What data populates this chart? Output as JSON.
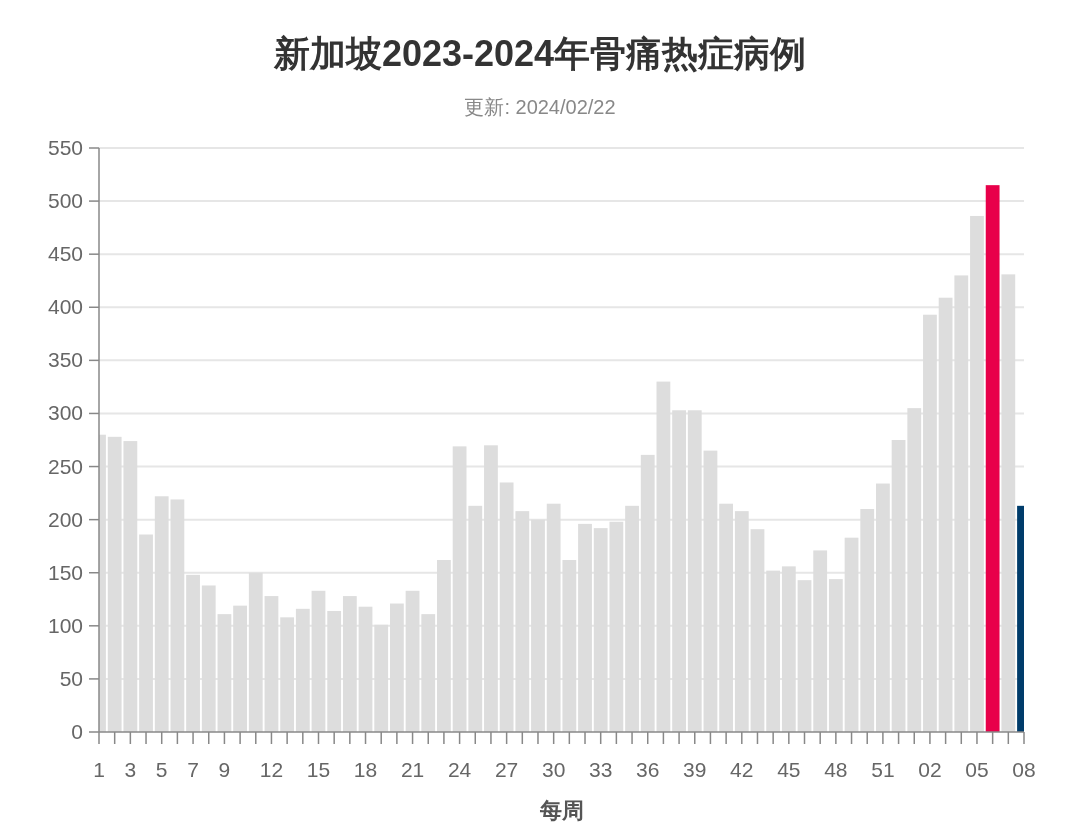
{
  "chart_data": {
    "type": "bar",
    "title": "新加坡2023-2024年骨痛热症病例",
    "subtitle": "更新: 2024/02/22",
    "xlabel": "每周",
    "categories": [
      "1",
      null,
      "3",
      null,
      "5",
      null,
      "7",
      null,
      "9",
      null,
      null,
      "12",
      null,
      null,
      "15",
      null,
      null,
      "18",
      null,
      null,
      "21",
      null,
      null,
      "24",
      null,
      null,
      "27",
      null,
      null,
      "30",
      null,
      null,
      "33",
      null,
      null,
      "36",
      null,
      null,
      "39",
      null,
      null,
      "42",
      null,
      null,
      "45",
      null,
      null,
      "48",
      null,
      null,
      "51",
      null,
      null,
      "02",
      null,
      null,
      "05",
      null,
      null,
      "08"
    ],
    "values": [
      280,
      278,
      274,
      186,
      222,
      219,
      148,
      138,
      111,
      119,
      150,
      128,
      108,
      116,
      133,
      114,
      128,
      118,
      101,
      121,
      133,
      111,
      162,
      269,
      213,
      270,
      235,
      208,
      200,
      215,
      162,
      196,
      192,
      198,
      213,
      261,
      330,
      303,
      303,
      265,
      215,
      208,
      191,
      152,
      156,
      143,
      171,
      144,
      183,
      210,
      234,
      275,
      305,
      393,
      409,
      430,
      486,
      515,
      431,
      213
    ],
    "colors": [
      "#dddddd",
      "#dddddd",
      "#dddddd",
      "#dddddd",
      "#dddddd",
      "#dddddd",
      "#dddddd",
      "#dddddd",
      "#dddddd",
      "#dddddd",
      "#dddddd",
      "#dddddd",
      "#dddddd",
      "#dddddd",
      "#dddddd",
      "#dddddd",
      "#dddddd",
      "#dddddd",
      "#dddddd",
      "#dddddd",
      "#dddddd",
      "#dddddd",
      "#dddddd",
      "#dddddd",
      "#dddddd",
      "#dddddd",
      "#dddddd",
      "#dddddd",
      "#dddddd",
      "#dddddd",
      "#dddddd",
      "#dddddd",
      "#dddddd",
      "#dddddd",
      "#dddddd",
      "#dddddd",
      "#dddddd",
      "#dddddd",
      "#dddddd",
      "#dddddd",
      "#dddddd",
      "#dddddd",
      "#dddddd",
      "#dddddd",
      "#dddddd",
      "#dddddd",
      "#dddddd",
      "#dddddd",
      "#dddddd",
      "#dddddd",
      "#dddddd",
      "#dddddd",
      "#dddddd",
      "#dddddd",
      "#dddddd",
      "#dddddd",
      "#dddddd",
      "#e8004a",
      "#dddddd",
      "#003c6b"
    ],
    "ylim": [
      0,
      550
    ],
    "yticks": [
      0,
      50,
      100,
      150,
      200,
      250,
      300,
      350,
      400,
      450,
      500,
      550
    ],
    "grid": "y"
  }
}
